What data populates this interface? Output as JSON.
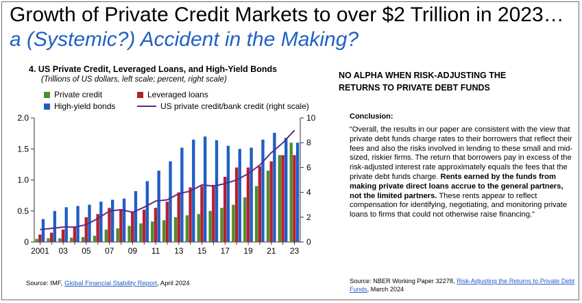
{
  "headline": {
    "main": "Growth of Private Credit Markets to over $2 Trillion in 2023… ",
    "sub": "a (Systemic?) Accident in the Making?"
  },
  "chart": {
    "title": "4. US Private Credit, Leveraged Loans, and High-Yield Bonds",
    "subtitle": "(Trillions of US dollars, left scale; percent, right scale)",
    "legend": {
      "private_credit": "Private credit",
      "leveraged_loans": "Leveraged loans",
      "high_yield": "High-yield bonds",
      "ratio": "US private credit/bank credit (right scale)"
    },
    "source_prefix": "Source: IMF, ",
    "source_link": "Global Financial Stability Report",
    "source_suffix": ", April 2024"
  },
  "colors": {
    "private_credit": "#4e8d2f",
    "leveraged_loans": "#b5202e",
    "high_yield": "#1f5fc4",
    "ratio": "#5b2a86",
    "headline_sub": "#1f5fc4"
  },
  "chart_data": {
    "type": "bar",
    "title": "US Private Credit, Leveraged Loans, and High-Yield Bonds",
    "categories": [
      "2001",
      "2002",
      "2003",
      "2004",
      "2005",
      "2006",
      "2007",
      "2008",
      "2009",
      "2010",
      "2011",
      "2012",
      "2013",
      "2014",
      "2015",
      "2016",
      "2017",
      "2018",
      "2019",
      "2020",
      "2021",
      "2022",
      "2023"
    ],
    "x_tick_labels": [
      "2001",
      "03",
      "05",
      "07",
      "09",
      "11",
      "13",
      "15",
      "17",
      "19",
      "21",
      "23"
    ],
    "series": [
      {
        "name": "Private credit",
        "axis": "left",
        "values": [
          0.05,
          0.06,
          0.06,
          0.07,
          0.08,
          0.1,
          0.2,
          0.22,
          0.26,
          0.3,
          0.33,
          0.35,
          0.4,
          0.43,
          0.45,
          0.5,
          0.55,
          0.6,
          0.72,
          0.9,
          1.15,
          1.4,
          1.6
        ]
      },
      {
        "name": "Leveraged loans",
        "axis": "left",
        "values": [
          0.12,
          0.15,
          0.2,
          0.25,
          0.4,
          0.45,
          0.55,
          0.52,
          0.48,
          0.52,
          0.55,
          0.65,
          0.8,
          0.88,
          0.9,
          0.92,
          1.05,
          1.2,
          1.2,
          1.22,
          1.3,
          1.4,
          1.4
        ]
      },
      {
        "name": "High-yield bonds",
        "axis": "left",
        "values": [
          0.37,
          0.5,
          0.56,
          0.58,
          0.6,
          0.65,
          0.68,
          0.7,
          0.82,
          0.98,
          1.15,
          1.3,
          1.52,
          1.65,
          1.7,
          1.64,
          1.55,
          1.5,
          1.52,
          1.65,
          1.76,
          1.68,
          1.6
        ]
      },
      {
        "name": "US private credit/bank credit (right scale)",
        "type": "line",
        "axis": "right",
        "values": [
          1.0,
          1.1,
          1.2,
          1.2,
          1.4,
          1.9,
          2.5,
          2.6,
          2.4,
          2.8,
          3.3,
          3.4,
          3.9,
          4.1,
          4.6,
          4.5,
          4.7,
          5.0,
          5.5,
          6.2,
          7.2,
          8.0,
          9.0
        ]
      }
    ],
    "y_left": {
      "min": 0,
      "max": 2.0,
      "ticks": [
        0,
        0.5,
        1.0,
        1.5,
        2.0
      ],
      "tick_labels": [
        "0",
        "0.5",
        "1.0",
        "1.5",
        "2.0"
      ]
    },
    "y_right": {
      "min": 0,
      "max": 10,
      "ticks": [
        0,
        2,
        4,
        6,
        8,
        10
      ],
      "tick_labels": [
        "0",
        "2",
        "4",
        "6",
        "8",
        "10"
      ]
    },
    "xlabel": "",
    "ylabel": ""
  },
  "right": {
    "heading": "NO ALPHA WHEN RISK-ADJUSTING THE RETURNS TO PRIVATE DEBT FUNDS",
    "conclusion_label": "Conclusion:",
    "quote_part1": "“Overall, the results in our paper are consistent with the view that private debt funds charge rates to their borrowers that reflect their fees and also the risks involved in lending to these small and mid-sized, riskier firms. The return that borrowers pay in excess of the risk-adjusted interest rate approximately equals the fees that the private debt funds charge. ",
    "quote_bold": "Rents earned by the funds from making private direct loans accrue to the general partners, not the limited partners.",
    "quote_part2": " These rents appear to reflect compensation for identifying, negotiating, and monitoring private loans to firms that could not otherwise raise financing.”",
    "source_prefix": "Source: NBER Working Paper 32278, ",
    "source_link": "Risk-Adjusting the Returns to Private Debt Funds",
    "source_suffix": ", March 2024"
  }
}
